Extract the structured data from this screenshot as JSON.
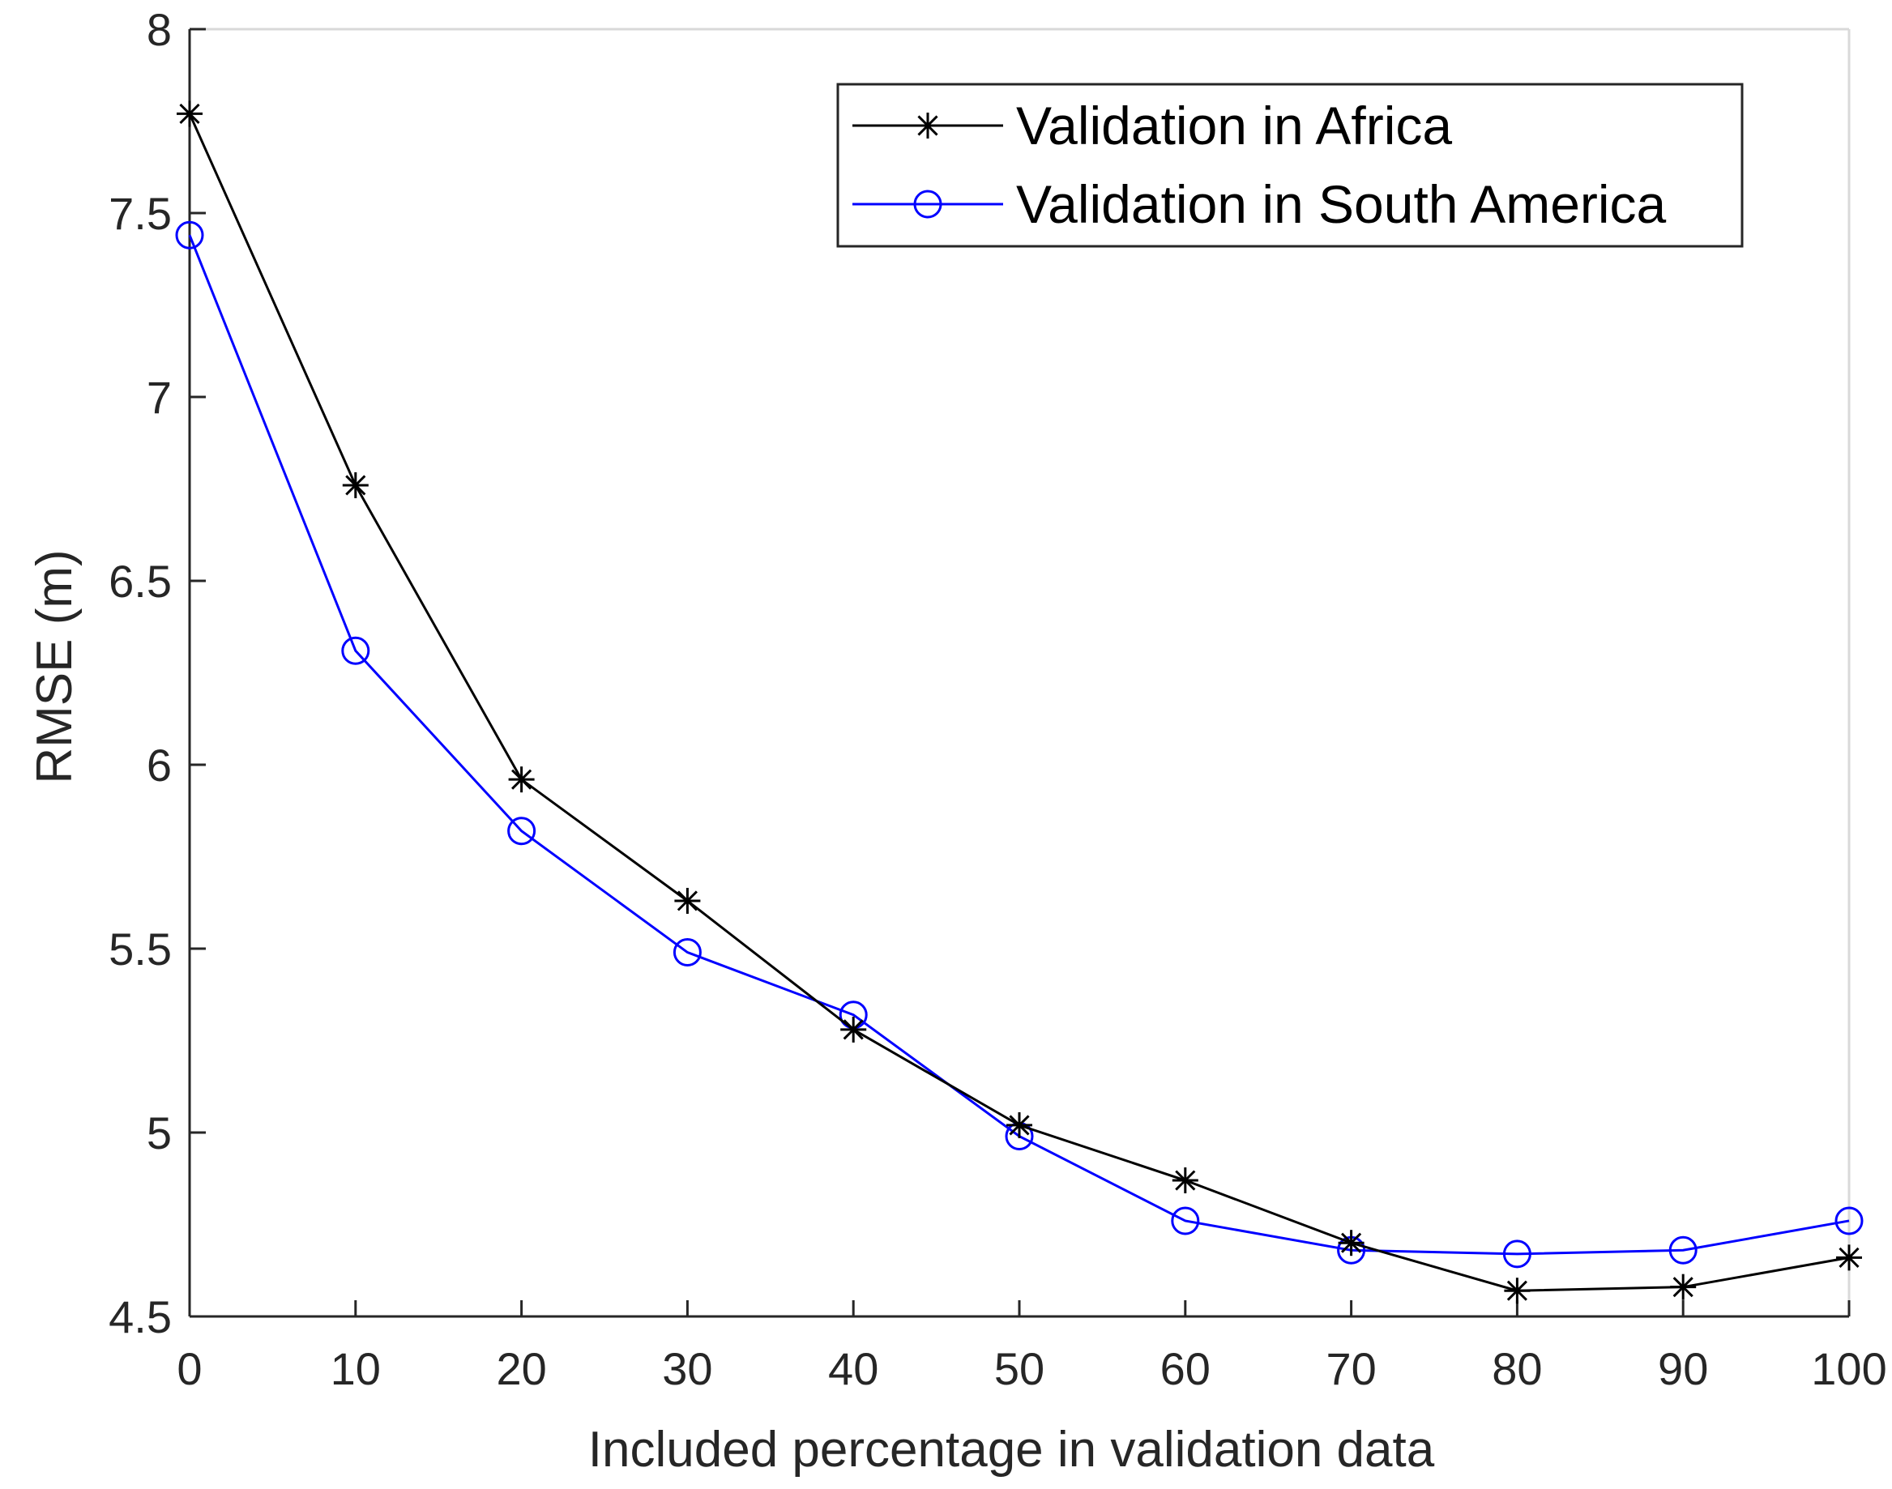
{
  "chart_data": {
    "type": "line",
    "title": "",
    "xlabel": "Included percentage in validation data",
    "ylabel": "RMSE (m)",
    "xlim": [
      0,
      100
    ],
    "ylim": [
      4.5,
      8
    ],
    "xticks": [
      "0",
      "10",
      "20",
      "30",
      "40",
      "50",
      "60",
      "70",
      "80",
      "90",
      "100"
    ],
    "yticks": [
      "4.5",
      "5",
      "5.5",
      "6",
      "6.5",
      "7",
      "7.5",
      "8"
    ],
    "x": [
      0,
      10,
      20,
      30,
      40,
      50,
      60,
      70,
      80,
      90,
      100
    ],
    "grid": false,
    "legend_position": "top-right",
    "series": [
      {
        "name": "Validation in Africa",
        "color": "#000000",
        "marker": "asterisk",
        "values": [
          7.77,
          6.76,
          5.96,
          5.63,
          5.28,
          5.02,
          4.87,
          4.7,
          4.57,
          4.58,
          4.66
        ]
      },
      {
        "name": "Validation in South America",
        "color": "#0000ff",
        "marker": "circle",
        "values": [
          7.44,
          6.31,
          5.82,
          5.49,
          5.32,
          4.99,
          4.76,
          4.68,
          4.67,
          4.68,
          4.76
        ]
      }
    ]
  }
}
